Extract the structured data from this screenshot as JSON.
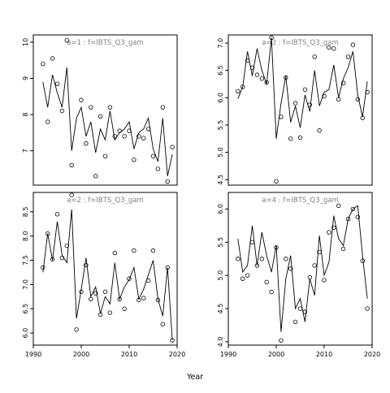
{
  "figure": {
    "xlabel": "Year"
  },
  "chart_data": [
    {
      "type": "line",
      "title": "a=1  :  f=IBTS_Q3_gam",
      "xlim": [
        1990,
        2020
      ],
      "ylim": [
        6.05,
        10.2
      ],
      "xticks": [],
      "yticks": [
        7,
        8,
        9,
        10
      ],
      "ytick_labels": [
        "7",
        "8",
        "9",
        "10"
      ],
      "series": [
        {
          "mark": "line",
          "x": [
            1992,
            1993,
            1994,
            1995,
            1996,
            1997,
            1998,
            1999,
            2000,
            2001,
            2002,
            2003,
            2004,
            2005,
            2006,
            2007,
            2008,
            2009,
            2010,
            2011,
            2012,
            2013,
            2014,
            2015,
            2016,
            2017,
            2018,
            2019
          ],
          "y": [
            8.9,
            8.2,
            9.1,
            8.6,
            8.2,
            9.3,
            7.0,
            7.9,
            8.2,
            7.4,
            7.8,
            6.95,
            7.6,
            7.3,
            8.1,
            7.3,
            7.5,
            7.6,
            7.8,
            7.05,
            7.5,
            7.6,
            7.9,
            7.05,
            6.7,
            7.9,
            6.3,
            6.9
          ]
        },
        {
          "mark": "points",
          "x": [
            1992,
            1993,
            1994,
            1995,
            1996,
            1997,
            1998,
            2000,
            2001,
            2002,
            2003,
            2004,
            2005,
            2006,
            2007,
            2008,
            2009,
            2010,
            2011,
            2012,
            2013,
            2014,
            2015,
            2016,
            2017,
            2018,
            2019
          ],
          "y": [
            9.4,
            7.8,
            9.55,
            8.85,
            8.1,
            10.05,
            6.6,
            8.4,
            7.2,
            8.2,
            6.3,
            7.95,
            6.85,
            8.2,
            7.4,
            7.55,
            7.4,
            7.55,
            6.75,
            7.4,
            7.35,
            7.6,
            6.85,
            6.5,
            8.2,
            6.15,
            7.1
          ]
        }
      ]
    },
    {
      "type": "line",
      "title": "a=3  :  f=IBTS_Q3_gam",
      "xlim": [
        1990,
        2020
      ],
      "ylim": [
        4.4,
        7.15
      ],
      "xticks": [],
      "yticks": [
        4.5,
        5.0,
        5.5,
        6.0,
        6.5,
        7.0
      ],
      "ytick_labels": [
        "4.5",
        "5.0",
        "5.5",
        "6.0",
        "6.5",
        "7.0"
      ],
      "series": [
        {
          "mark": "line",
          "x": [
            1992,
            1993,
            1994,
            1995,
            1996,
            1997,
            1998,
            1999,
            2000,
            2001,
            2002,
            2003,
            2004,
            2005,
            2006,
            2007,
            2008,
            2009,
            2010,
            2011,
            2012,
            2013,
            2014,
            2015,
            2016,
            2017,
            2018,
            2019
          ],
          "y": [
            5.98,
            6.2,
            6.85,
            6.4,
            6.9,
            6.5,
            6.25,
            7.1,
            5.25,
            5.9,
            6.4,
            5.55,
            5.85,
            5.45,
            6.05,
            5.75,
            6.5,
            5.85,
            6.1,
            6.15,
            6.6,
            6.0,
            6.35,
            6.55,
            6.85,
            6.05,
            5.65,
            6.3
          ]
        },
        {
          "mark": "points",
          "x": [
            1992,
            1993,
            1994,
            1995,
            1996,
            1997,
            1998,
            1999,
            2000,
            2001,
            2002,
            2003,
            2004,
            2005,
            2006,
            2007,
            2008,
            2009,
            2010,
            2011,
            2012,
            2013,
            2014,
            2015,
            2016,
            2017,
            2018,
            2019
          ],
          "y": [
            6.12,
            6.2,
            6.68,
            6.55,
            6.42,
            6.35,
            6.28,
            7.1,
            4.47,
            5.65,
            6.37,
            5.25,
            5.9,
            5.27,
            6.15,
            5.87,
            6.75,
            5.4,
            6.03,
            6.92,
            6.9,
            5.97,
            6.27,
            6.75,
            6.97,
            5.97,
            5.63,
            6.1
          ]
        }
      ]
    },
    {
      "type": "line",
      "title": "a=2  :  f=IBTS_Q3_gam",
      "xlim": [
        1990,
        2020
      ],
      "ylim": [
        5.75,
        8.9
      ],
      "xticks": [
        1990,
        2000,
        2010,
        2020
      ],
      "xtick_labels": [
        "1990",
        "2000",
        "2010",
        "2020"
      ],
      "yticks": [
        6.0,
        6.5,
        7.0,
        7.5,
        8.0,
        8.5
      ],
      "ytick_labels": [
        "6.0",
        "6.5",
        "7.0",
        "7.5",
        "8.0",
        "8.5"
      ],
      "series": [
        {
          "mark": "line",
          "x": [
            1992,
            1993,
            1994,
            1995,
            1996,
            1997,
            1998,
            1999,
            2000,
            2001,
            2002,
            2003,
            2004,
            2005,
            2006,
            2007,
            2008,
            2009,
            2010,
            2011,
            2012,
            2013,
            2014,
            2015,
            2016,
            2017,
            2018,
            2019
          ],
          "y": [
            7.25,
            8.05,
            7.5,
            8.3,
            7.6,
            7.45,
            8.55,
            6.3,
            6.9,
            7.55,
            6.75,
            6.95,
            6.4,
            6.75,
            6.6,
            7.45,
            6.7,
            6.95,
            7.1,
            7.35,
            6.7,
            6.9,
            7.2,
            7.5,
            6.7,
            6.35,
            7.35,
            5.85
          ]
        },
        {
          "mark": "points",
          "x": [
            1992,
            1993,
            1994,
            1995,
            1996,
            1997,
            1998,
            1999,
            2000,
            2001,
            2002,
            2003,
            2004,
            2005,
            2006,
            2007,
            2008,
            2009,
            2010,
            2011,
            2012,
            2013,
            2014,
            2015,
            2016,
            2017,
            2018,
            2019
          ],
          "y": [
            7.35,
            8.05,
            7.52,
            8.45,
            7.55,
            7.8,
            8.85,
            6.07,
            6.85,
            7.4,
            6.7,
            6.82,
            6.38,
            6.85,
            6.42,
            7.65,
            6.7,
            6.5,
            7.12,
            7.7,
            6.68,
            6.72,
            7.08,
            7.7,
            6.68,
            6.18,
            7.35,
            5.85
          ]
        }
      ]
    },
    {
      "type": "line",
      "title": "a=4  :  f=IBTS_Q3_gam",
      "xlim": [
        1990,
        2020
      ],
      "ylim": [
        3.95,
        6.25
      ],
      "xticks": [
        1990,
        2000,
        2010,
        2020
      ],
      "xtick_labels": [
        "1990",
        "2000",
        "2010",
        "2020"
      ],
      "yticks": [
        4.0,
        4.5,
        5.0,
        5.5,
        6.0
      ],
      "ytick_labels": [
        "4.0",
        "4.5",
        "5.0",
        "5.5",
        "6.0"
      ],
      "series": [
        {
          "mark": "line",
          "x": [
            1992,
            1993,
            1994,
            1995,
            1996,
            1997,
            1998,
            1999,
            2000,
            2001,
            2002,
            2003,
            2004,
            2005,
            2006,
            2007,
            2008,
            2009,
            2010,
            2011,
            2012,
            2013,
            2014,
            2015,
            2016,
            2017,
            2018,
            2019
          ],
          "y": [
            5.55,
            5.05,
            5.15,
            5.75,
            5.15,
            5.65,
            5.3,
            5.05,
            5.45,
            4.15,
            4.95,
            5.3,
            4.5,
            4.65,
            4.3,
            4.95,
            4.7,
            5.6,
            5.0,
            5.2,
            5.9,
            5.55,
            5.45,
            5.85,
            6.0,
            6.05,
            5.3,
            4.65
          ]
        },
        {
          "mark": "points",
          "x": [
            1992,
            1993,
            1994,
            1995,
            1996,
            1997,
            1998,
            1999,
            2000,
            2001,
            2002,
            2003,
            2004,
            2005,
            2006,
            2007,
            2008,
            2009,
            2010,
            2011,
            2012,
            2013,
            2014,
            2015,
            2016,
            2017,
            2018,
            2019
          ],
          "y": [
            5.25,
            4.95,
            5.0,
            5.5,
            5.15,
            5.25,
            4.9,
            4.75,
            5.42,
            4.02,
            5.25,
            5.1,
            4.3,
            4.5,
            4.45,
            4.97,
            5.15,
            5.35,
            4.93,
            5.65,
            5.72,
            6.05,
            5.4,
            5.85,
            6.0,
            5.88,
            5.22,
            4.5
          ]
        }
      ]
    }
  ]
}
